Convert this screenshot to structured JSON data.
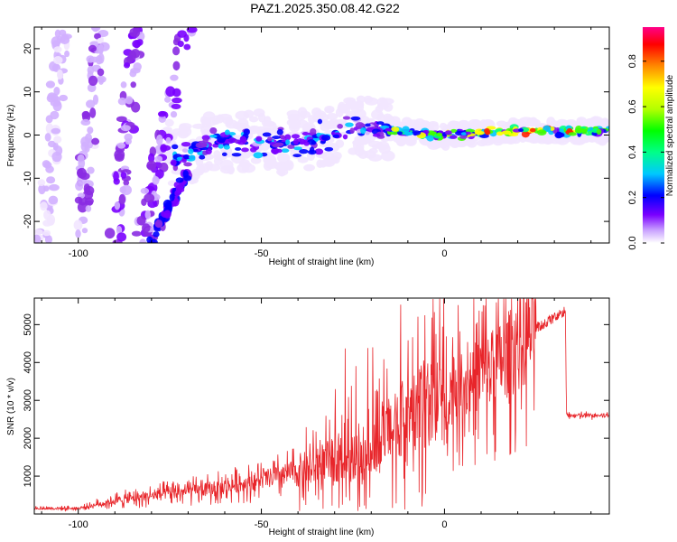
{
  "title": "PAZ1.2025.350.08.42.G22",
  "chart_data": [
    {
      "type": "heatmap",
      "name": "spectrogram",
      "xlabel": "Height of straight line (km)",
      "ylabel": "Frequency (Hz)",
      "xlim": [
        -112,
        45
      ],
      "ylim": [
        -25,
        25
      ],
      "xticks": [
        "-100",
        "-50",
        "0"
      ],
      "xtick_values": [
        -100,
        -50,
        0
      ],
      "yticks": [
        "20",
        "10",
        "0",
        "-10",
        "-20"
      ],
      "ytick_values": [
        20,
        10,
        0,
        -10,
        -20
      ],
      "ridge": [
        {
          "x": -75,
          "y": -7
        },
        {
          "x": -65,
          "y": -2
        },
        {
          "x": -55,
          "y": -1
        },
        {
          "x": -45,
          "y": -2
        },
        {
          "x": -35,
          "y": -1
        },
        {
          "x": -25,
          "y": 2
        },
        {
          "x": -15,
          "y": 1
        },
        {
          "x": 0,
          "y": 0
        },
        {
          "x": 20,
          "y": 1
        },
        {
          "x": 45,
          "y": 1
        }
      ],
      "colorbar": {
        "label": "Normalized spectral amplitude",
        "ticks": [
          "0.0",
          "0.2",
          "0.4",
          "0.6",
          "0.8"
        ],
        "tick_values": [
          0.0,
          0.2,
          0.4,
          0.6,
          0.8
        ],
        "range": [
          0.0,
          0.95
        ]
      }
    },
    {
      "type": "line",
      "name": "snr",
      "xlabel": "Height of straight line (km)",
      "ylabel": "SNR (10 * v/v)",
      "xlim": [
        -112,
        45
      ],
      "ylim": [
        0,
        5700
      ],
      "xticks": [
        "-100",
        "-50",
        "0"
      ],
      "xtick_values": [
        -100,
        -50,
        0
      ],
      "yticks": [
        "1000",
        "2000",
        "3000",
        "4000",
        "5000"
      ],
      "ytick_values": [
        1000,
        2000,
        3000,
        4000,
        5000
      ],
      "color": "#e8252a",
      "envelope": [
        {
          "x": -112,
          "y": 150
        },
        {
          "x": -100,
          "y": 150
        },
        {
          "x": -90,
          "y": 350
        },
        {
          "x": -75,
          "y": 550
        },
        {
          "x": -60,
          "y": 700
        },
        {
          "x": -45,
          "y": 1000
        },
        {
          "x": -30,
          "y": 1400
        },
        {
          "x": -20,
          "y": 1600
        },
        {
          "x": -15,
          "y": 2200
        },
        {
          "x": -5,
          "y": 2900
        },
        {
          "x": 5,
          "y": 3400
        },
        {
          "x": 15,
          "y": 4000
        },
        {
          "x": 25,
          "y": 4900
        },
        {
          "x": 33,
          "y": 5350
        },
        {
          "x": 33.3,
          "y": 2600
        },
        {
          "x": 45,
          "y": 2600
        }
      ]
    }
  ],
  "colors": {
    "axis": "#000000",
    "line": "#e8252a"
  }
}
